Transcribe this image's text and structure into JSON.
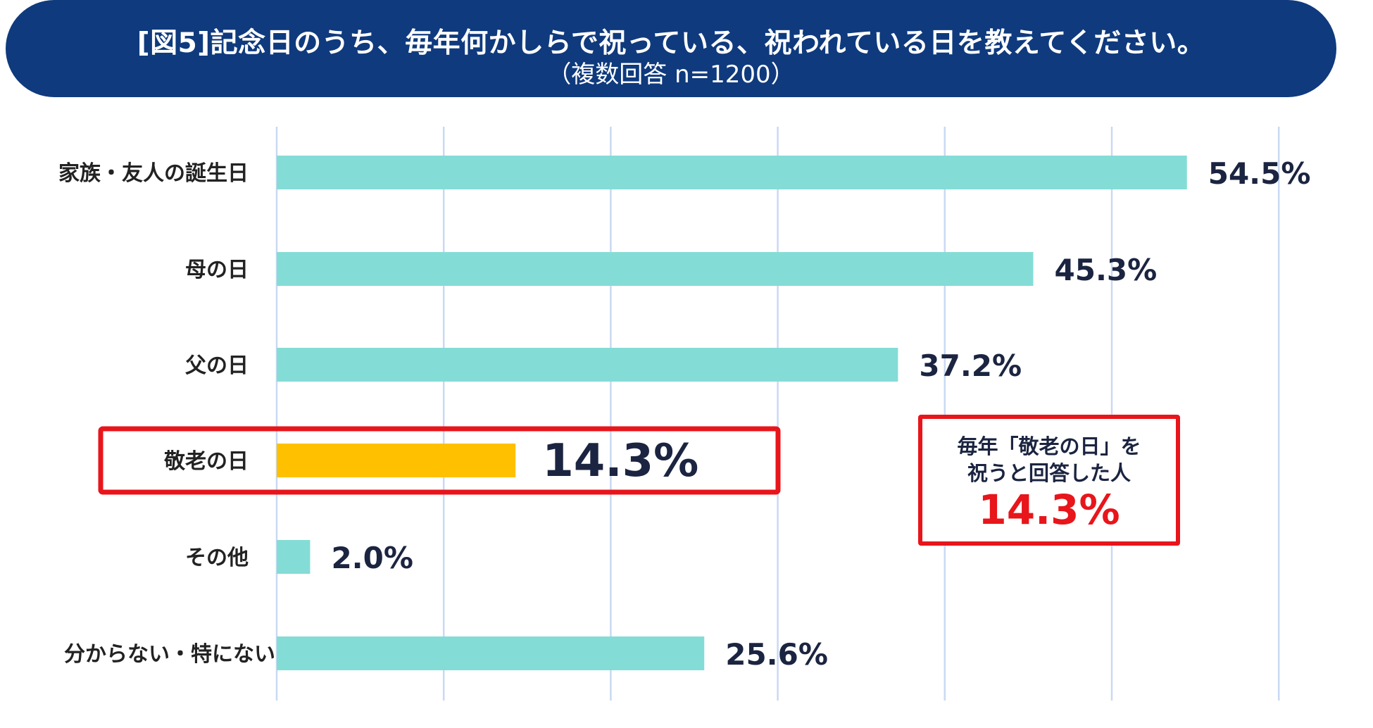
{
  "title": {
    "main": "[図5]記念日のうち、毎年何かしらで祝っている、祝われている日を教えてください。",
    "sub": "（複数回答 n=1200）"
  },
  "colors": {
    "banner": "#0f3a7d",
    "bar": "#84dcd6",
    "highlight_bar": "#ffc000",
    "highlight_border": "#e8151b",
    "grid": "#c9d9f2",
    "label_text": "#1b2440"
  },
  "chart_data": {
    "type": "bar",
    "orientation": "horizontal",
    "categories": [
      "家族・友人の誕生日",
      "母の日",
      "父の日",
      "敬老の日",
      "その他",
      "分からない・特にない"
    ],
    "values": [
      54.5,
      45.3,
      37.2,
      14.3,
      2.0,
      25.6
    ],
    "value_labels": [
      "54.5%",
      "45.3%",
      "37.2%",
      "14.3%",
      "2.0%",
      "25.6%"
    ],
    "highlight_index": 3,
    "xlim": [
      0,
      60
    ],
    "grid": true
  },
  "callout": {
    "line1": "毎年「敬老の日」を",
    "line2": "祝うと回答した人",
    "value": "14.3%"
  }
}
